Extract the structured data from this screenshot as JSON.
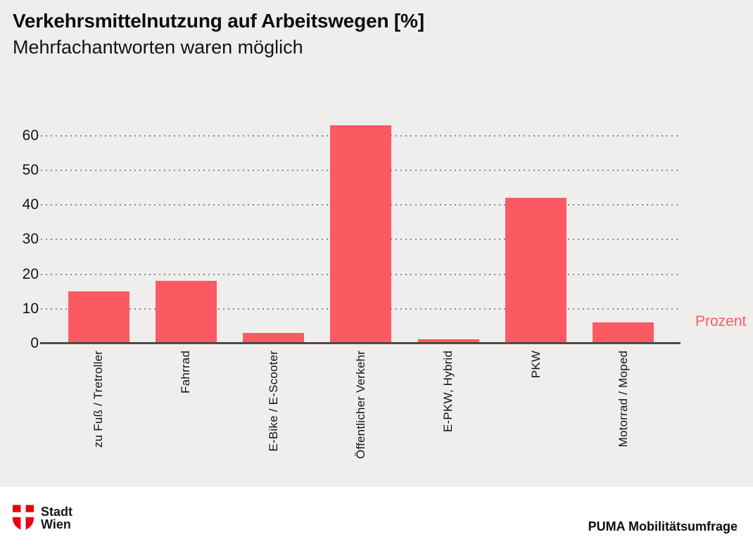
{
  "header": {
    "title": "Verkehrsmittelnutzung auf Arbeitswegen [%]",
    "subtitle": "Mehrfachantworten waren möglich"
  },
  "chart_data": {
    "type": "bar",
    "title": "Verkehrsmittelnutzung auf Arbeitswegen [%]",
    "subtitle": "Mehrfachantworten waren möglich",
    "categories": [
      "zu Fuß / Tretroller",
      "Fahrrad",
      "E-Bike / E-Scooter",
      "Öffentlicher Verkehr",
      "E-PKW, Hybrid",
      "PKW",
      "Motorrad / Moped"
    ],
    "values": [
      15.3,
      18.2,
      3.3,
      63.3,
      1.4,
      42.3,
      6.3
    ],
    "ylabel": "Prozent",
    "xlabel": "",
    "yticks": [
      0,
      10,
      20,
      30,
      40,
      50,
      60
    ],
    "ylim": [
      0,
      67
    ],
    "grid": "horizontal dotted",
    "legend": "none",
    "bar_color": "#fc5a63",
    "x_tick_rotation_degrees": 90
  },
  "footer": {
    "logo_icon": "wien-coat-of-arms-shield-icon",
    "logo_line1": "Stadt",
    "logo_line2": "Wien",
    "source": "PUMA Mobilitätsumfrage"
  },
  "colors": {
    "background": "#f0eeec",
    "footer_background": "#ffffff",
    "bar": "#fc5a63",
    "accent_text": "#fc5a63",
    "axis_line": "#4d4c4a",
    "gridline": "#8d8b88",
    "text": "#141414",
    "logo_red": "#e8000d"
  }
}
